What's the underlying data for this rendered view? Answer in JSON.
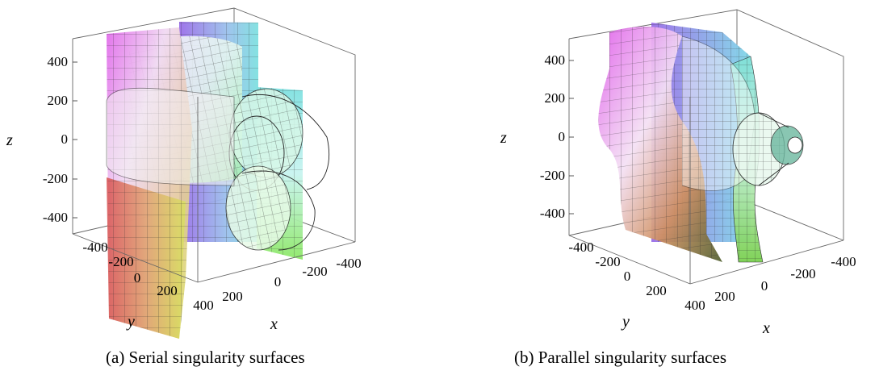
{
  "panels": [
    {
      "id": "a",
      "caption": "(a) Serial singularity surfaces",
      "axes": {
        "z_label": "z",
        "y_label": "y",
        "x_label": "x",
        "z_ticks": [
          "400",
          "200",
          "0",
          "-200",
          "-400"
        ],
        "y_ticks": [
          "-400",
          "-200",
          "0",
          "200",
          "400"
        ],
        "x_ticks": [
          "200",
          "0",
          "-200",
          "-400"
        ]
      }
    },
    {
      "id": "b",
      "caption": "(b) Parallel singularity surfaces",
      "axes": {
        "z_label": "z",
        "y_label": "y",
        "x_label": "x",
        "z_ticks": [
          "400",
          "200",
          "0",
          "-200",
          "-400"
        ],
        "y_ticks": [
          "-400",
          "-200",
          "0",
          "200",
          "400"
        ],
        "x_ticks": [
          "200",
          "0",
          "-200",
          "-400"
        ]
      }
    }
  ],
  "colors": {
    "axis": "#555555",
    "mesh": "#222222",
    "magenta": "#e05ce8",
    "violet": "#a070e8",
    "cyan": "#7fe0e8",
    "green": "#8ee85a",
    "red": "#d04040",
    "yellow": "#e8e060"
  }
}
